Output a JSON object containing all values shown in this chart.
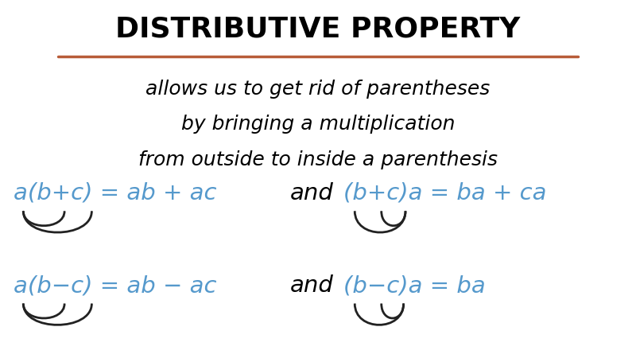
{
  "title": "DISTRIBUTIVE PROPERTY",
  "title_color": "#000000",
  "underline_color": "#b85c38",
  "bg_color": "#ffffff",
  "desc_lines": [
    "allows us to get rid of parentheses",
    "by bringing a multiplication",
    "from outside to inside a parenthesis"
  ],
  "desc_color": "#000000",
  "formula_color_blue": "#5599cc",
  "formula_color_black": "#000000",
  "arrow_color": "#222222",
  "figsize": [
    8.0,
    4.5
  ],
  "dpi": 100,
  "title_fontsize": 26,
  "desc_fontsize": 18,
  "formula_fontsize": 21,
  "and_fontsize": 21,
  "row1_formulas": {
    "left": "a(b+c) = ab + ac",
    "right": "(b+c)a = ba + ca"
  },
  "row2_formulas": {
    "left": "a(b−c) = ab − ac",
    "right": "(b−c)a = ba"
  }
}
